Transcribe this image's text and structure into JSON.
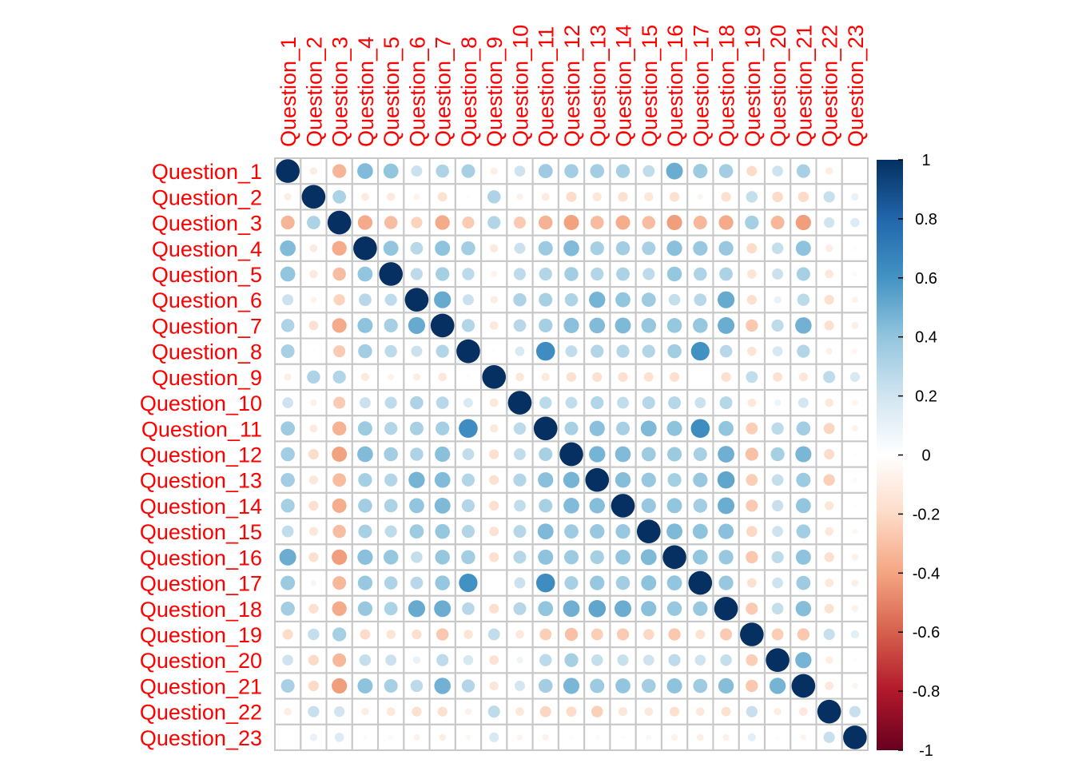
{
  "chart_data": {
    "type": "heatmap",
    "subtype": "correlation-matrix",
    "glyph": "circle",
    "circle_size_encodes": "absolute correlation",
    "label_color": "#ff0000",
    "grid_color": "#c8c8c8",
    "title": "",
    "xlabel": "",
    "ylabel": "",
    "variables": [
      "Question_1",
      "Question_2",
      "Question_3",
      "Question_4",
      "Question_5",
      "Question_6",
      "Question_7",
      "Question_8",
      "Question_9",
      "Question_10",
      "Question_11",
      "Question_12",
      "Question_13",
      "Question_14",
      "Question_15",
      "Question_16",
      "Question_17",
      "Question_18",
      "Question_19",
      "Question_20",
      "Question_21",
      "Question_22",
      "Question_23"
    ],
    "matrix": [
      [
        1.0,
        -0.1,
        -0.34,
        0.44,
        0.4,
        0.22,
        0.31,
        0.33,
        -0.09,
        0.21,
        0.36,
        0.35,
        0.35,
        0.34,
        0.25,
        0.5,
        0.37,
        0.35,
        -0.19,
        0.21,
        0.33,
        -0.1,
        0.01
      ],
      [
        -0.1,
        1.0,
        0.32,
        -0.11,
        -0.12,
        -0.07,
        -0.16,
        0.02,
        0.31,
        -0.08,
        -0.11,
        -0.19,
        -0.14,
        -0.17,
        -0.14,
        -0.17,
        -0.06,
        -0.17,
        0.24,
        -0.2,
        -0.2,
        0.23,
        0.1
      ],
      [
        -0.34,
        0.32,
        1.0,
        -0.38,
        -0.31,
        -0.23,
        -0.38,
        -0.26,
        0.3,
        -0.26,
        -0.35,
        -0.41,
        -0.32,
        -0.37,
        -0.31,
        -0.42,
        -0.33,
        -0.38,
        0.34,
        -0.33,
        -0.42,
        0.2,
        0.15
      ],
      [
        0.44,
        -0.11,
        -0.38,
        1.0,
        0.4,
        0.28,
        0.41,
        0.35,
        -0.12,
        0.22,
        0.37,
        0.44,
        0.34,
        0.35,
        0.33,
        0.42,
        0.38,
        0.38,
        -0.19,
        0.24,
        0.41,
        -0.1,
        -0.03
      ],
      [
        0.4,
        -0.12,
        -0.31,
        0.4,
        1.0,
        0.26,
        0.34,
        0.27,
        -0.07,
        0.26,
        0.3,
        0.35,
        0.3,
        0.32,
        0.26,
        0.39,
        0.31,
        0.32,
        -0.15,
        0.22,
        0.33,
        -0.13,
        -0.04
      ],
      [
        0.22,
        -0.07,
        -0.23,
        0.28,
        0.26,
        1.0,
        0.51,
        0.22,
        -0.1,
        0.31,
        0.33,
        0.31,
        0.47,
        0.4,
        0.36,
        0.24,
        0.28,
        0.51,
        -0.17,
        0.1,
        0.27,
        -0.17,
        -0.07
      ],
      [
        0.31,
        -0.16,
        -0.38,
        0.41,
        0.34,
        0.51,
        1.0,
        0.3,
        -0.13,
        0.28,
        0.34,
        0.42,
        0.44,
        0.45,
        0.39,
        0.39,
        0.39,
        0.5,
        -0.27,
        0.26,
        0.48,
        -0.17,
        -0.09
      ],
      [
        0.33,
        0.02,
        -0.26,
        0.35,
        0.27,
        0.22,
        0.3,
        1.0,
        0.02,
        0.16,
        0.63,
        0.25,
        0.3,
        0.3,
        0.3,
        0.35,
        0.61,
        0.28,
        -0.15,
        0.18,
        0.3,
        -0.08,
        -0.05
      ],
      [
        -0.09,
        0.31,
        0.3,
        -0.12,
        -0.07,
        -0.1,
        -0.13,
        0.02,
        1.0,
        -0.13,
        -0.12,
        -0.17,
        -0.17,
        -0.17,
        -0.16,
        -0.17,
        0.01,
        -0.17,
        0.25,
        -0.16,
        -0.14,
        0.26,
        0.17
      ],
      [
        0.21,
        -0.08,
        -0.26,
        0.22,
        0.26,
        0.31,
        0.28,
        0.16,
        -0.13,
        1.0,
        0.27,
        0.25,
        0.3,
        0.25,
        0.29,
        0.29,
        0.22,
        0.29,
        -0.13,
        0.08,
        0.19,
        -0.13,
        -0.06
      ],
      [
        0.36,
        -0.11,
        -0.35,
        0.37,
        0.3,
        0.33,
        0.34,
        0.63,
        -0.12,
        0.27,
        1.0,
        0.33,
        0.42,
        0.33,
        0.45,
        0.41,
        0.63,
        0.4,
        -0.25,
        0.27,
        0.35,
        -0.22,
        -0.07
      ],
      [
        0.35,
        -0.19,
        -0.41,
        0.44,
        0.35,
        0.31,
        0.42,
        0.25,
        -0.17,
        0.25,
        0.33,
        1.0,
        0.47,
        0.44,
        0.36,
        0.37,
        0.33,
        0.49,
        -0.3,
        0.34,
        0.46,
        -0.19,
        -0.02
      ],
      [
        0.35,
        -0.14,
        -0.32,
        0.34,
        0.3,
        0.47,
        0.44,
        0.3,
        -0.17,
        0.3,
        0.42,
        0.47,
        1.0,
        0.43,
        0.38,
        0.34,
        0.38,
        0.53,
        -0.25,
        0.24,
        0.37,
        -0.24,
        -0.04
      ],
      [
        0.34,
        -0.17,
        -0.37,
        0.35,
        0.32,
        0.4,
        0.45,
        0.3,
        -0.17,
        0.25,
        0.33,
        0.44,
        0.43,
        1.0,
        0.38,
        0.4,
        0.35,
        0.5,
        -0.26,
        0.23,
        0.4,
        -0.14,
        -0.02
      ],
      [
        0.25,
        -0.14,
        -0.31,
        0.33,
        0.26,
        0.36,
        0.39,
        0.3,
        -0.16,
        0.29,
        0.45,
        0.36,
        0.38,
        0.38,
        1.0,
        0.45,
        0.41,
        0.42,
        -0.21,
        0.21,
        0.35,
        -0.13,
        -0.05
      ],
      [
        0.5,
        -0.17,
        -0.42,
        0.42,
        0.39,
        0.24,
        0.39,
        0.35,
        -0.17,
        0.29,
        0.41,
        0.37,
        0.34,
        0.4,
        0.45,
        1.0,
        0.4,
        0.38,
        -0.27,
        0.26,
        0.41,
        -0.17,
        -0.08
      ],
      [
        0.37,
        -0.06,
        -0.33,
        0.38,
        0.31,
        0.28,
        0.39,
        0.61,
        0.01,
        0.22,
        0.63,
        0.33,
        0.38,
        0.35,
        0.41,
        0.4,
        1.0,
        0.38,
        -0.16,
        0.21,
        0.36,
        -0.13,
        -0.09
      ],
      [
        0.35,
        -0.17,
        -0.38,
        0.38,
        0.32,
        0.51,
        0.5,
        0.28,
        -0.17,
        0.29,
        0.4,
        0.49,
        0.53,
        0.5,
        0.42,
        0.38,
        0.38,
        1.0,
        -0.26,
        0.24,
        0.43,
        -0.16,
        -0.08
      ],
      [
        -0.19,
        0.24,
        0.34,
        -0.19,
        -0.15,
        -0.17,
        -0.27,
        -0.15,
        0.25,
        -0.13,
        -0.25,
        -0.3,
        -0.25,
        -0.26,
        -0.21,
        -0.27,
        -0.16,
        -0.26,
        1.0,
        -0.25,
        -0.27,
        0.23,
        0.12
      ],
      [
        0.21,
        -0.2,
        -0.33,
        0.24,
        0.22,
        0.1,
        0.26,
        0.18,
        -0.16,
        0.08,
        0.27,
        0.34,
        0.24,
        0.23,
        0.21,
        0.26,
        0.21,
        0.24,
        -0.25,
        1.0,
        0.47,
        -0.1,
        -0.03
      ],
      [
        0.33,
        -0.2,
        -0.42,
        0.41,
        0.33,
        0.27,
        0.48,
        0.3,
        -0.14,
        0.19,
        0.35,
        0.46,
        0.37,
        0.4,
        0.35,
        0.41,
        0.36,
        0.43,
        -0.27,
        0.47,
        1.0,
        -0.13,
        -0.06
      ],
      [
        -0.1,
        0.23,
        0.2,
        -0.1,
        -0.13,
        -0.17,
        -0.17,
        -0.08,
        0.26,
        -0.13,
        -0.22,
        -0.19,
        -0.24,
        -0.14,
        -0.13,
        -0.17,
        -0.13,
        -0.16,
        0.23,
        -0.1,
        -0.13,
        1.0,
        0.23
      ],
      [
        0.01,
        0.1,
        0.15,
        -0.03,
        -0.04,
        -0.07,
        -0.09,
        -0.05,
        0.17,
        -0.06,
        -0.07,
        -0.02,
        -0.04,
        -0.02,
        -0.05,
        -0.08,
        -0.09,
        -0.08,
        0.12,
        -0.03,
        -0.06,
        0.23,
        1.0
      ]
    ],
    "colorbar": {
      "range": [
        -1,
        1
      ],
      "ticks": [
        1,
        0.8,
        0.6,
        0.4,
        0.2,
        0,
        -0.2,
        -0.4,
        -0.6,
        -0.8,
        -1
      ],
      "tick_labels": [
        "1",
        "0.8",
        "0.6",
        "0.4",
        "0.2",
        "0",
        "-0.2",
        "-0.4",
        "-0.6",
        "-0.8",
        "-1"
      ],
      "palette": [
        "#67001f",
        "#b2182b",
        "#d6604d",
        "#f4a582",
        "#fddbc7",
        "#ffffff",
        "#d1e5f0",
        "#92c5de",
        "#4393c3",
        "#2166ac",
        "#053061"
      ]
    }
  }
}
